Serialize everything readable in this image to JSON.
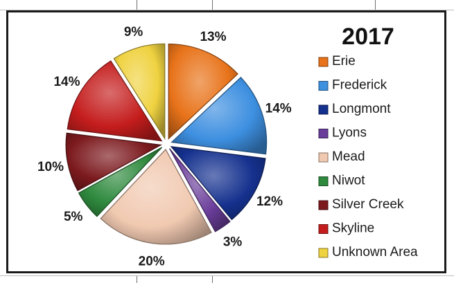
{
  "chart_data": {
    "type": "pie",
    "title": "2017",
    "legend_position": "right",
    "slices": [
      {
        "name": "Erie",
        "value": 13,
        "label": "13%",
        "color": "#e8731a"
      },
      {
        "name": "Frederick",
        "value": 14,
        "label": "14%",
        "color": "#3d8fe0"
      },
      {
        "name": "Longmont",
        "value": 12,
        "label": "12%",
        "color": "#15318e"
      },
      {
        "name": "Lyons",
        "value": 3,
        "label": "3%",
        "color": "#6a3d9a"
      },
      {
        "name": "Mead",
        "value": 20,
        "label": "20%",
        "color": "#f1c9b1"
      },
      {
        "name": "Niwot",
        "value": 5,
        "label": "5%",
        "color": "#2f8a3e"
      },
      {
        "name": "Silver Creek",
        "value": 10,
        "label": "10%",
        "color": "#7c1a1e"
      },
      {
        "name": "Skyline",
        "value": 14,
        "label": "14%",
        "color": "#c51d1d"
      },
      {
        "name": "Unknown Area",
        "value": 9,
        "label": "9%",
        "color": "#efd240"
      }
    ]
  }
}
